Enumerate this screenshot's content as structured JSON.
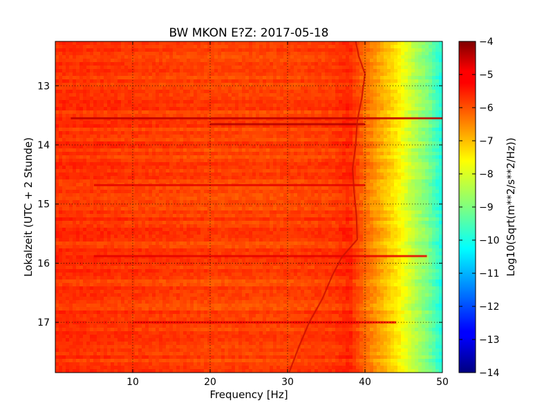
{
  "chart_data": {
    "type": "heatmap",
    "title": "BW MKON E?Z: 2017-05-18",
    "xlabel": "Frequency [Hz]",
    "ylabel": "Lokalzeit (UTC + 2 Stunde)",
    "colorbar_label": "Log10(Sqrt(m**2/s**2/Hz))",
    "xlim": [
      0,
      50
    ],
    "ylim": [
      12.25,
      17.85
    ],
    "y_inverted": true,
    "clim": [
      -14,
      -4
    ],
    "colormap": "jet",
    "grid": "dotted",
    "x_ticks": [
      10,
      20,
      30,
      40,
      50
    ],
    "x_tick_labels": [
      "10",
      "20",
      "30",
      "40",
      "50"
    ],
    "y_ticks": [
      13,
      14,
      15,
      16,
      17
    ],
    "y_tick_labels": [
      "13",
      "14",
      "15",
      "16",
      "17"
    ],
    "cbar_ticks": [
      -4,
      -5,
      -6,
      -7,
      -8,
      -9,
      -10,
      -11,
      -12,
      -13,
      -14
    ],
    "cbar_tick_labels": [
      "−4",
      "−5",
      "−6",
      "−7",
      "−8",
      "−9",
      "−10",
      "−11",
      "−12",
      "−13",
      "−14"
    ],
    "frequency_bands": [
      {
        "x": [
          0,
          10,
          20,
          30,
          36,
          38,
          40,
          42,
          44,
          46,
          48,
          50
        ],
        "value": [
          -5.7,
          -5.8,
          -5.9,
          -5.9,
          -5.8,
          -5.6,
          -6.3,
          -6.9,
          -7.5,
          -8.3,
          -9.0,
          -10.0
        ]
      }
    ],
    "horizontal_lines": [
      {
        "time": 13.55,
        "x_range": [
          2,
          50
        ],
        "value": -4.6
      },
      {
        "time": 13.65,
        "x_range": [
          20,
          40
        ],
        "value": -4.5
      },
      {
        "time": 14.68,
        "x_range": [
          5,
          40
        ],
        "value": -5.0
      },
      {
        "time": 15.88,
        "x_range": [
          5,
          48
        ],
        "value": -5.0
      },
      {
        "time": 17.0,
        "x_range": [
          10,
          44
        ],
        "value": -5.1
      }
    ],
    "resonance_line": {
      "time": [
        12.25,
        12.5,
        12.8,
        13.2,
        13.6,
        14.0,
        14.4,
        14.8,
        15.2,
        15.6,
        15.9,
        16.2,
        16.6,
        17.0,
        17.4,
        17.85
      ],
      "frequency": [
        38.8,
        39.2,
        40.0,
        39.6,
        39.0,
        38.8,
        38.4,
        38.6,
        38.9,
        39.0,
        37.0,
        35.8,
        34.5,
        32.8,
        31.5,
        30.2
      ],
      "value": -5.0
    }
  }
}
